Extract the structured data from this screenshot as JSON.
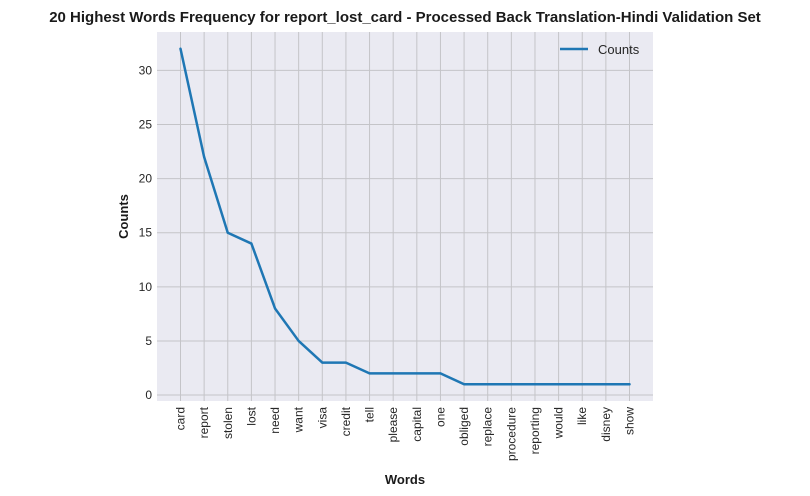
{
  "chart_data": {
    "type": "line",
    "title": "20 Highest Words Frequency for report_lost_card - Processed Back Translation-Hindi Validation Set",
    "xlabel": "Words",
    "ylabel": "Counts",
    "categories": [
      "card",
      "report",
      "stolen",
      "lost",
      "need",
      "want",
      "visa",
      "credit",
      "tell",
      "please",
      "capital",
      "one",
      "obliged",
      "replace",
      "procedure",
      "reporting",
      "would",
      "like",
      "disney",
      "show"
    ],
    "series": [
      {
        "name": "Counts",
        "values": [
          32,
          22,
          15,
          14,
          8,
          5,
          3,
          3,
          2,
          2,
          2,
          2,
          1,
          1,
          1,
          1,
          1,
          1,
          1,
          1
        ]
      }
    ],
    "yticks": [
      0,
      5,
      10,
      15,
      20,
      25,
      30
    ],
    "ylim": [
      -0.55,
      33.55
    ],
    "grid": true,
    "legend_position": "top-right",
    "colors": {
      "line": "#1f77b4",
      "plot_background": "#eaeaf2",
      "grid": "#c4c4c8"
    }
  }
}
